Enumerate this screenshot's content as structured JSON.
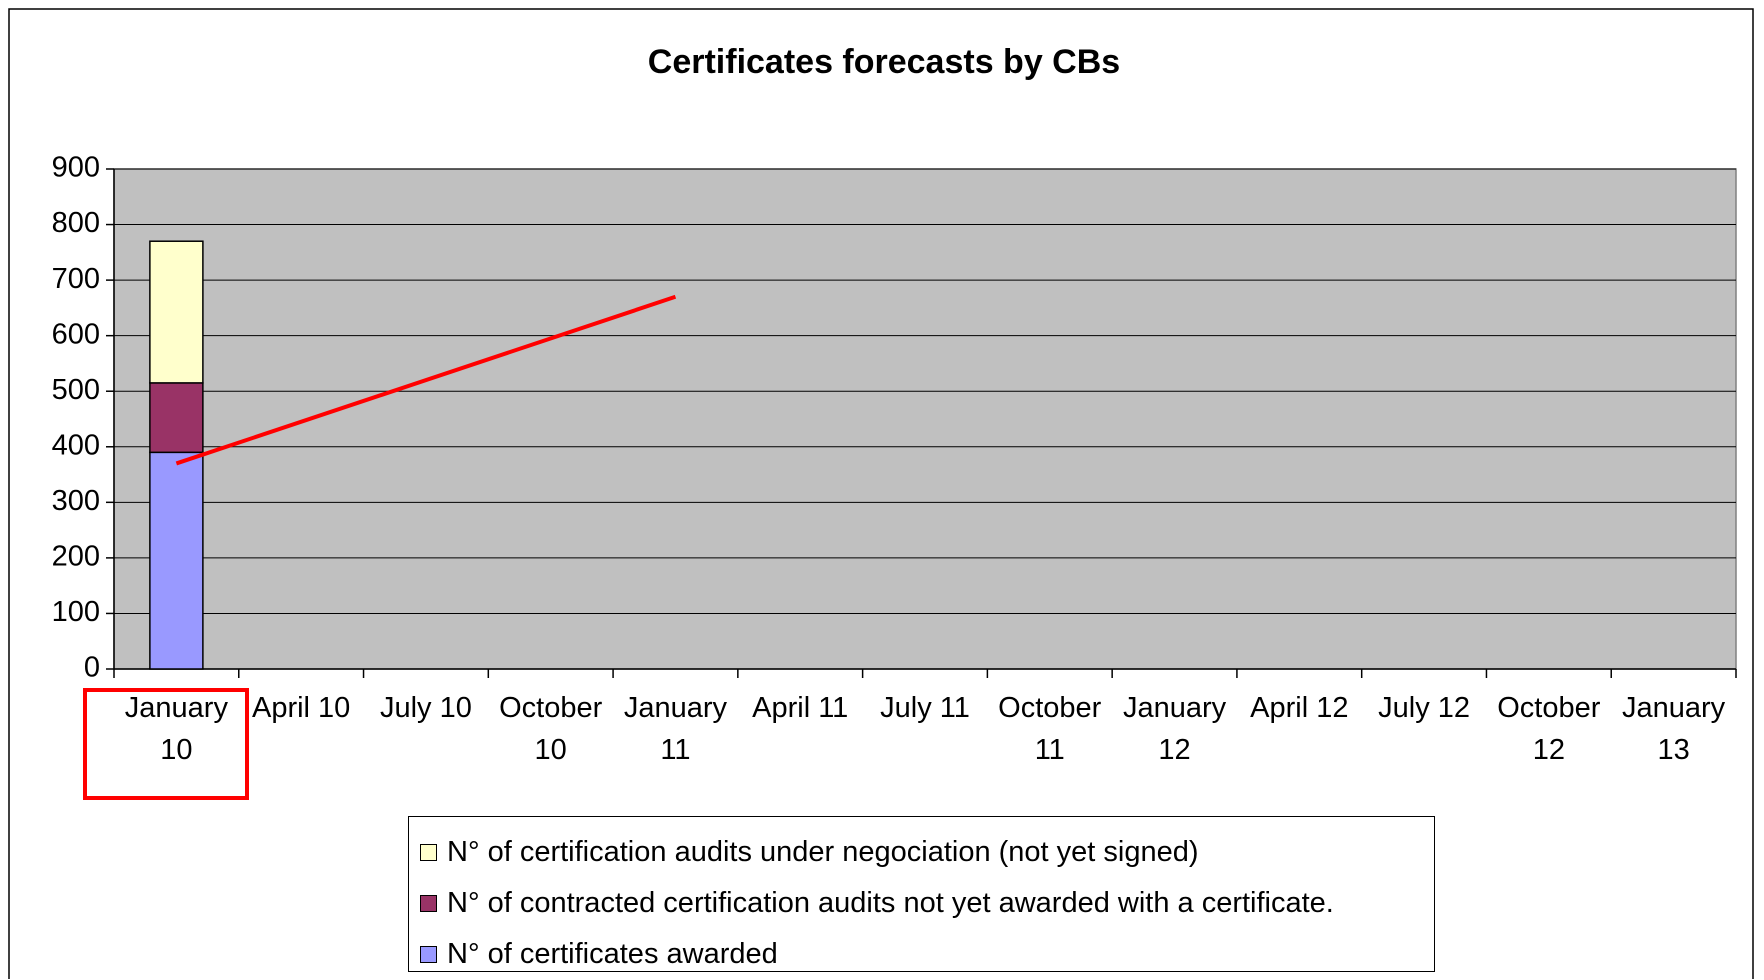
{
  "chart_data": {
    "type": "bar",
    "stacked": true,
    "title": "Certificates forecasts by CBs",
    "categories": [
      "January 10",
      "April 10",
      "July 10",
      "October 10",
      "January 11",
      "April 11",
      "July 11",
      "October 11",
      "January 12",
      "April 12",
      "July 12",
      "October 12",
      "January 13"
    ],
    "series": [
      {
        "name": "N° of certificates awarded",
        "color": "#9999ff",
        "values": [
          390,
          null,
          null,
          null,
          null,
          null,
          null,
          null,
          null,
          null,
          null,
          null,
          null
        ]
      },
      {
        "name": "N° of contracted certification audits not yet awarded with a certificate.",
        "color": "#993366",
        "values": [
          125,
          null,
          null,
          null,
          null,
          null,
          null,
          null,
          null,
          null,
          null,
          null,
          null
        ]
      },
      {
        "name": "N° of certification audits under negociation (not yet signed)",
        "color": "#ffffcc",
        "values": [
          255,
          null,
          null,
          null,
          null,
          null,
          null,
          null,
          null,
          null,
          null,
          null,
          null
        ]
      }
    ],
    "trend_line": {
      "color": "#ff0000",
      "values": [
        370,
        null,
        null,
        null,
        670,
        null,
        null,
        null,
        null,
        null,
        null,
        null,
        null
      ]
    },
    "ylim": [
      0,
      900
    ],
    "yticks": [
      0,
      100,
      200,
      300,
      400,
      500,
      600,
      700,
      800,
      900
    ],
    "grid": true,
    "plot_background": "#c0c0c0"
  }
}
